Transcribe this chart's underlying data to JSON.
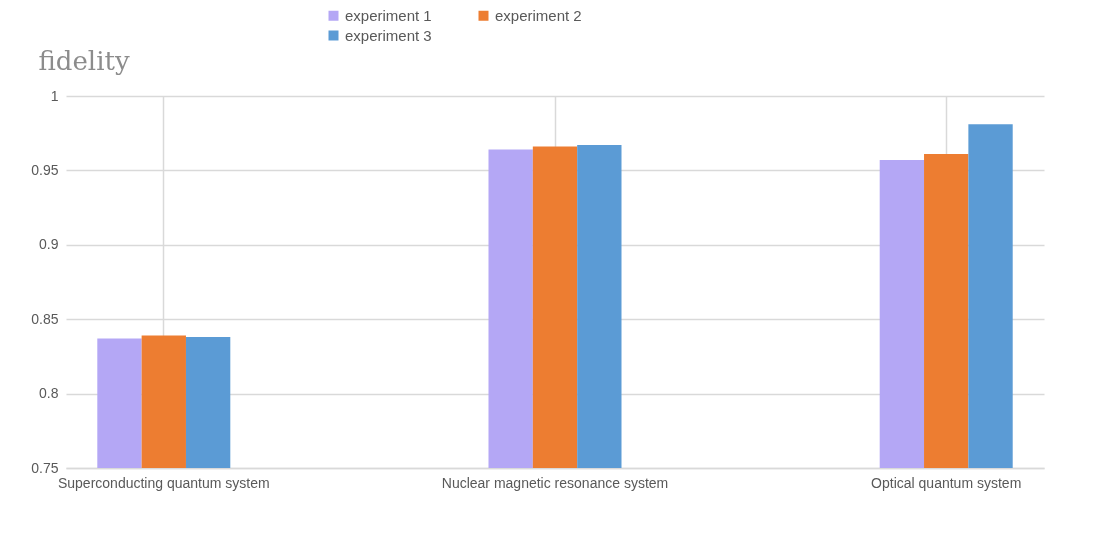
{
  "chart_data": {
    "type": "bar",
    "ylabel": "fidelity",
    "categories": [
      "Superconducting quantum system",
      "Nuclear magnetic resonance system",
      "Optical quantum system"
    ],
    "series": [
      {
        "name": "experiment  1",
        "color": "#b4a7f5",
        "values": [
          0.837,
          0.964,
          0.957
        ]
      },
      {
        "name": "experiment  2",
        "color": "#ed7d31",
        "values": [
          0.839,
          0.966,
          0.961
        ]
      },
      {
        "name": "experiment  3",
        "color": "#5b9bd5",
        "values": [
          0.838,
          0.967,
          0.981
        ]
      }
    ],
    "ylim": [
      0.75,
      1
    ],
    "yticks": [
      0.75,
      0.8,
      0.85,
      0.9,
      0.95,
      1
    ],
    "grid": true,
    "legend": "top"
  }
}
